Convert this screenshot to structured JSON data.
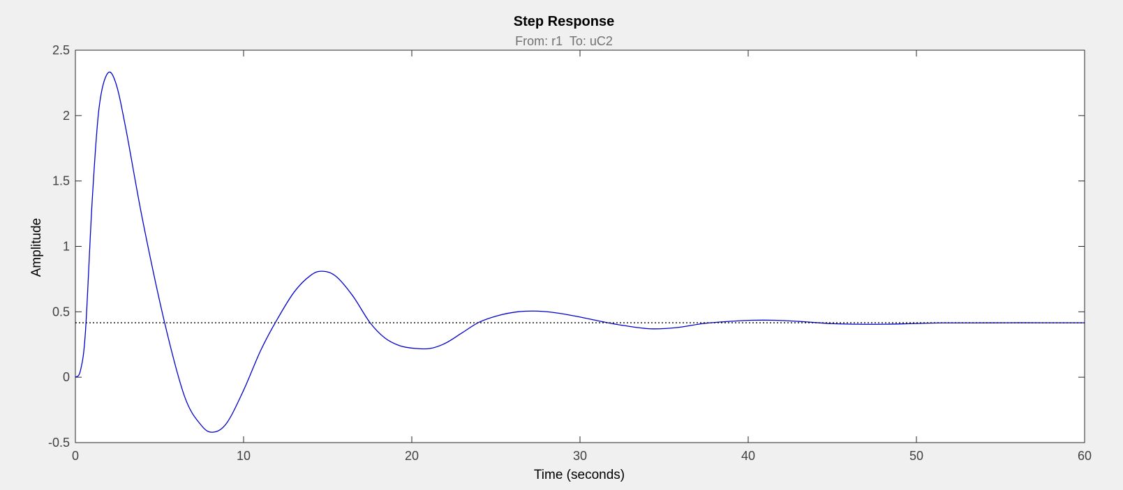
{
  "chart_data": {
    "type": "line",
    "title": "Step Response",
    "subtitle": "From: r1  To: uC2",
    "xlabel": "Time (seconds)",
    "ylabel": "Amplitude",
    "xlim": [
      0,
      60
    ],
    "ylim": [
      -0.5,
      2.5
    ],
    "x_ticks": [
      0,
      10,
      20,
      30,
      40,
      50,
      60
    ],
    "y_ticks": [
      -0.5,
      0,
      0.5,
      1,
      1.5,
      2,
      2.5
    ],
    "x_tick_labels": [
      "0",
      "10",
      "20",
      "30",
      "40",
      "50",
      "60"
    ],
    "y_tick_labels": [
      "-0.5",
      "0",
      "0.5",
      "1",
      "1.5",
      "2",
      "2.5"
    ],
    "grid": false,
    "series": [
      {
        "style": "solid",
        "color": "#0000cc",
        "x": [
          0,
          0.3,
          0.6,
          1.0,
          1.4,
          1.9,
          2.4,
          3.0,
          4.0,
          5.3,
          6.5,
          7.5,
          8.2,
          9.0,
          10.0,
          11.0,
          11.9,
          13.0,
          14.0,
          14.7,
          15.5,
          16.5,
          17.5,
          18.4,
          19.3,
          20.2,
          21.1,
          22.0,
          23.0,
          24.0,
          25.1,
          26.3,
          27.5,
          28.7,
          30.0,
          31.5,
          32.6,
          34.2,
          35.8,
          37.3,
          38.7,
          40.2,
          41.6,
          43.2,
          44.9,
          46.5,
          48.1,
          49.8,
          51.5,
          53.5,
          55.5,
          57.5,
          60.0
        ],
        "y": [
          0.0,
          0.05,
          0.35,
          1.35,
          2.05,
          2.32,
          2.25,
          1.9,
          1.2,
          0.42,
          -0.15,
          -0.37,
          -0.42,
          -0.35,
          -0.1,
          0.2,
          0.42,
          0.65,
          0.78,
          0.81,
          0.77,
          0.62,
          0.42,
          0.3,
          0.24,
          0.22,
          0.22,
          0.26,
          0.34,
          0.42,
          0.47,
          0.5,
          0.505,
          0.49,
          0.46,
          0.42,
          0.395,
          0.37,
          0.38,
          0.41,
          0.425,
          0.435,
          0.435,
          0.425,
          0.41,
          0.405,
          0.405,
          0.41,
          0.415,
          0.415,
          0.416,
          0.416,
          0.416
        ]
      },
      {
        "style": "dotted",
        "color": "#000000",
        "x": [
          0,
          60
        ],
        "y": [
          0.416,
          0.416
        ]
      }
    ]
  }
}
